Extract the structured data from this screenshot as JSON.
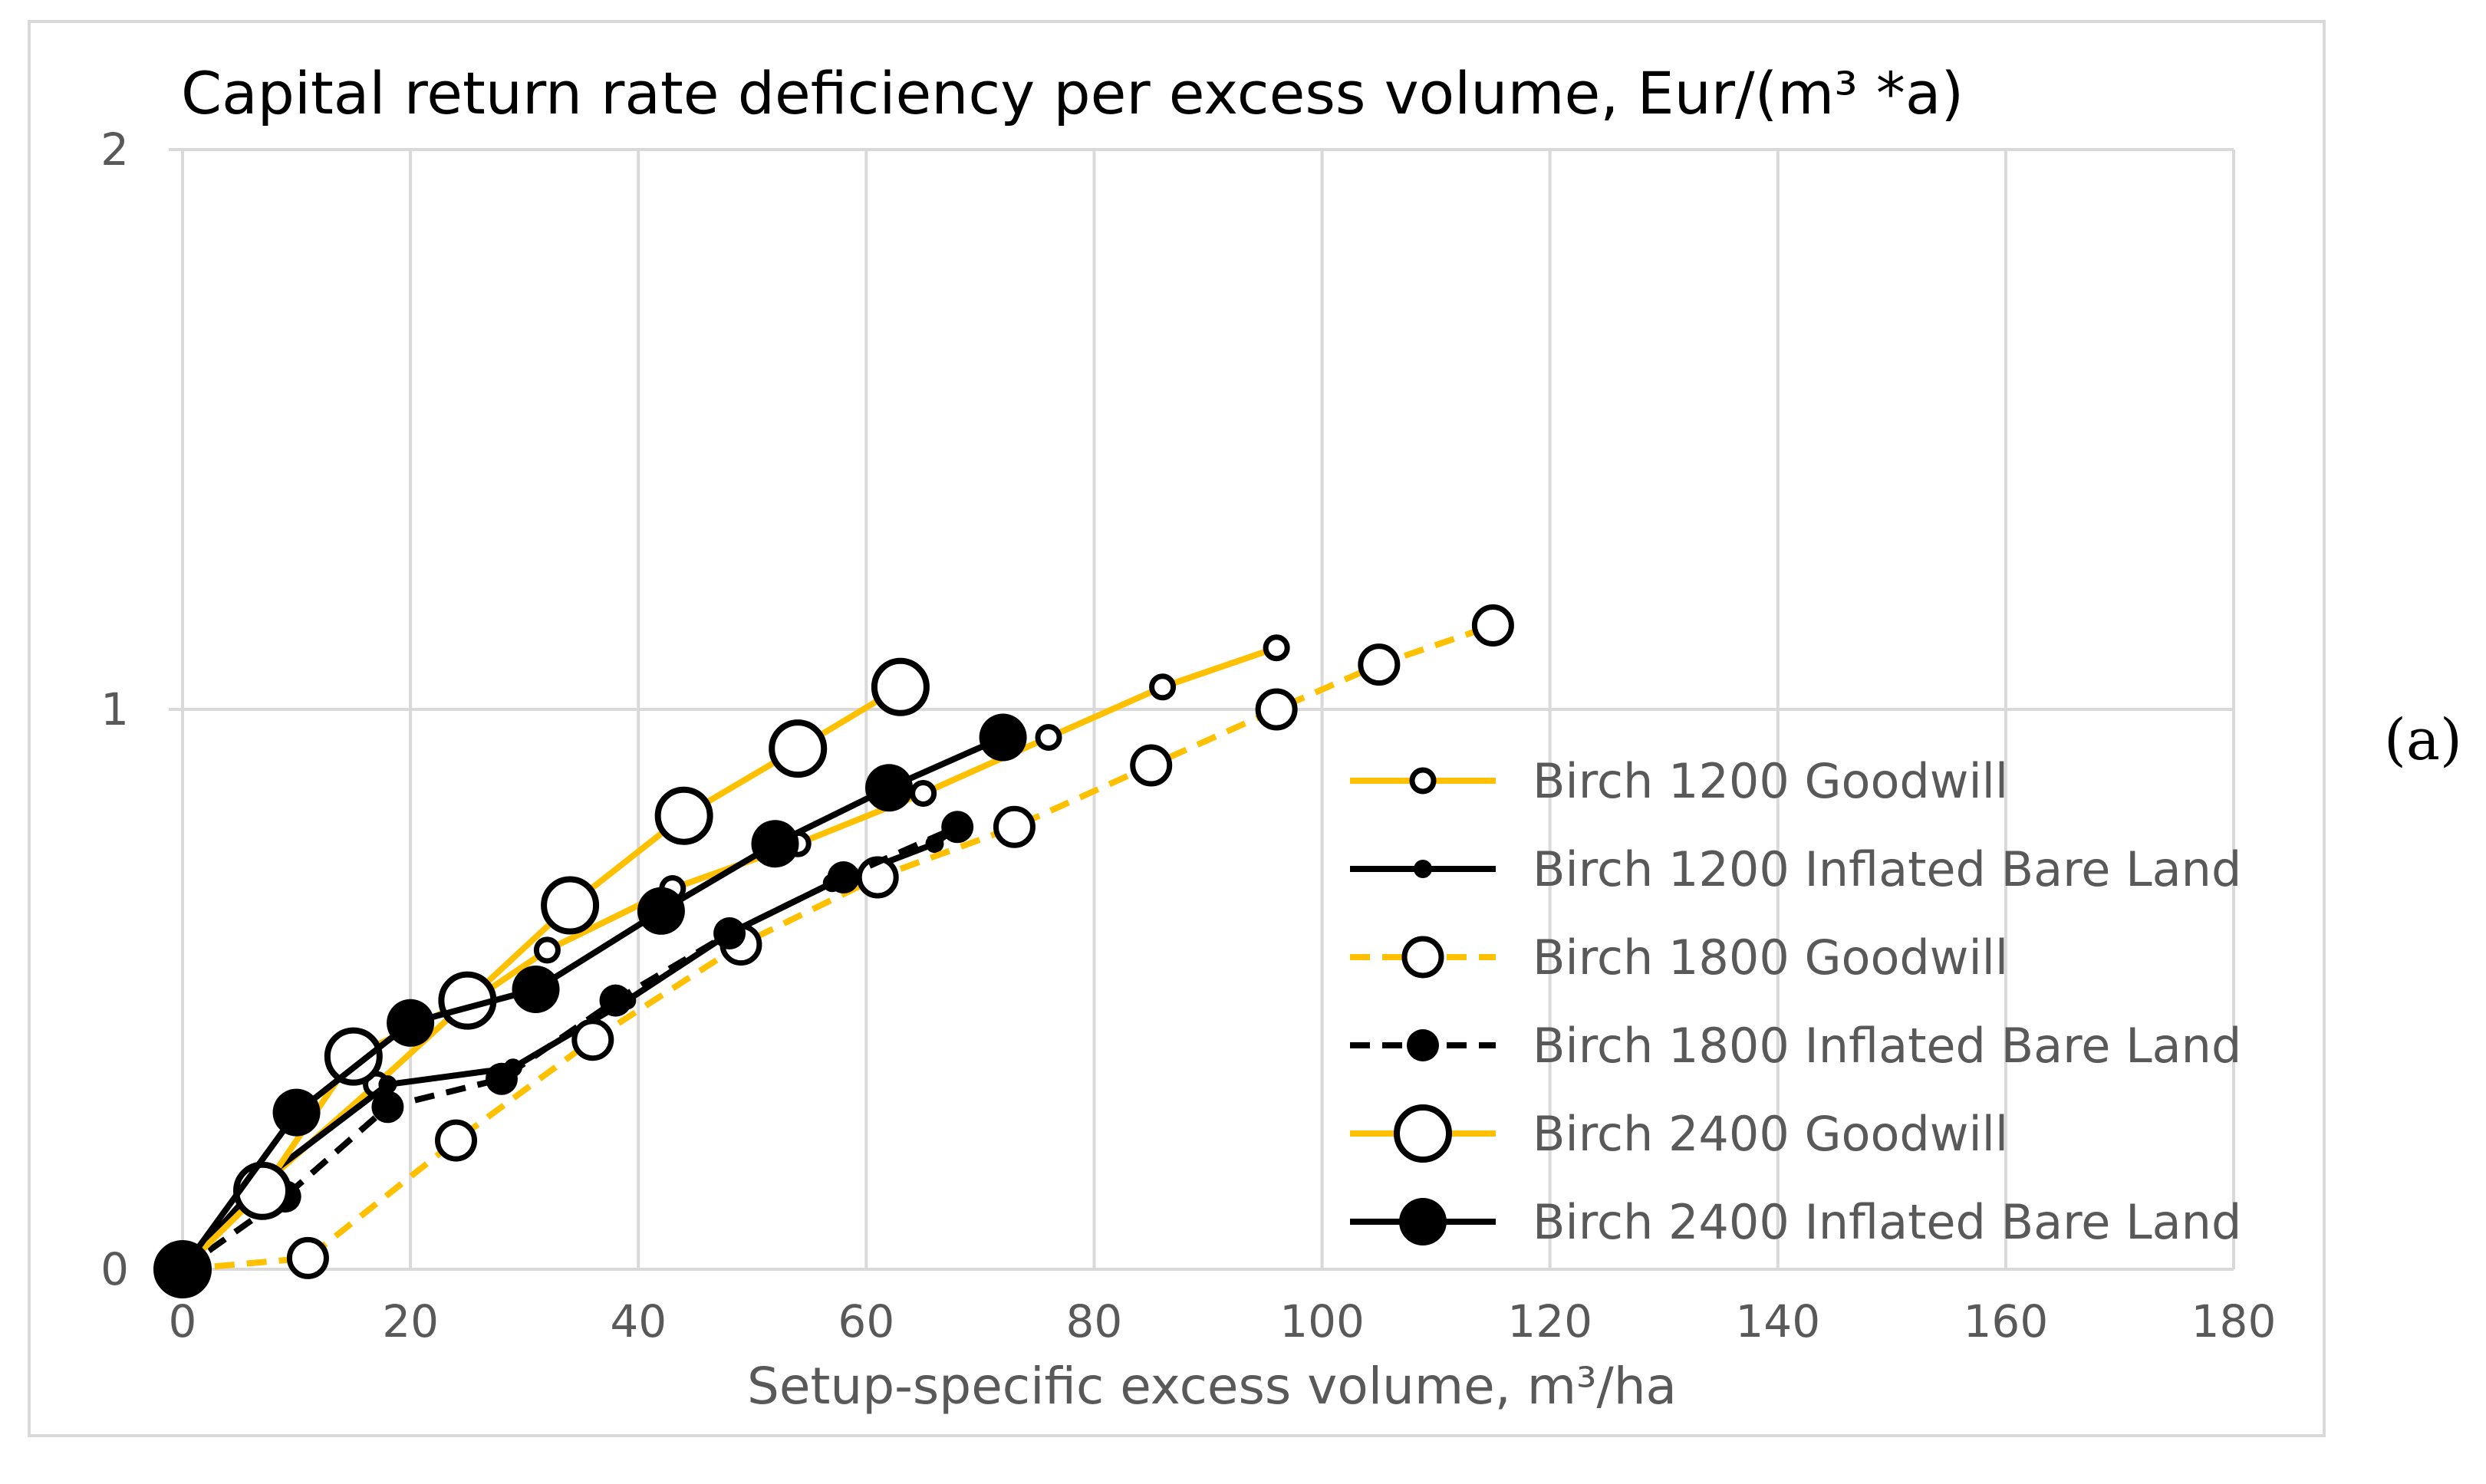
{
  "panel_label": "(a)",
  "chart_data": {
    "type": "line",
    "title": "Capital return rate deficiency per excess volume,  Eur/(m³ *a)",
    "xlabel": "Setup-specific excess volume, m³/ha",
    "ylabel": "",
    "xlim": [
      0,
      180
    ],
    "ylim": [
      0,
      2
    ],
    "x_ticks": [
      0,
      20,
      40,
      60,
      80,
      100,
      120,
      140,
      160,
      180
    ],
    "y_ticks": [
      0,
      1,
      2
    ],
    "grid": true,
    "legend_position": "right",
    "colors": {
      "gold": "#ffc000",
      "black": "#000000",
      "grid": "#d9d9d9"
    },
    "series": [
      {
        "name": "Birch 1200 Goodwill",
        "color": "#ffc000",
        "dash": "solid",
        "marker": "open-small",
        "points": [
          [
            0,
            0
          ],
          [
            7,
            0.15
          ],
          [
            17,
            0.33
          ],
          [
            24,
            0.46
          ],
          [
            32,
            0.57
          ],
          [
            43,
            0.68
          ],
          [
            54,
            0.76
          ],
          [
            65,
            0.85
          ],
          [
            76,
            0.95
          ],
          [
            86,
            1.04
          ],
          [
            96,
            1.11
          ]
        ]
      },
      {
        "name": "Birch 1200 Inflated Bare Land",
        "color": "#000000",
        "dash": "solid",
        "marker": "filled-small",
        "points": [
          [
            0,
            0
          ],
          [
            7,
            0.16
          ],
          [
            18,
            0.33
          ],
          [
            29,
            0.36
          ],
          [
            39,
            0.48
          ],
          [
            48,
            0.6
          ],
          [
            57,
            0.69
          ],
          [
            66,
            0.76
          ],
          [
            68,
            0.79
          ]
        ]
      },
      {
        "name": "Birch 1800 Goodwill",
        "color": "#ffc000",
        "dash": "dashed",
        "marker": "open-medium",
        "points": [
          [
            0,
            0
          ],
          [
            11,
            0.02
          ],
          [
            24,
            0.23
          ],
          [
            36,
            0.41
          ],
          [
            49,
            0.58
          ],
          [
            61,
            0.7
          ],
          [
            73,
            0.79
          ],
          [
            85,
            0.9
          ],
          [
            96,
            1.0
          ],
          [
            105,
            1.08
          ],
          [
            115,
            1.15
          ]
        ]
      },
      {
        "name": "Birch 1800 Inflated Bare Land",
        "color": "#000000",
        "dash": "dashed",
        "marker": "filled-medium",
        "points": [
          [
            0,
            0
          ],
          [
            9,
            0.13
          ],
          [
            18,
            0.29
          ],
          [
            28,
            0.34
          ],
          [
            38,
            0.48
          ],
          [
            48,
            0.6
          ],
          [
            58,
            0.7
          ],
          [
            68,
            0.79
          ]
        ]
      },
      {
        "name": "Birch 2400 Goodwill",
        "color": "#ffc000",
        "dash": "solid",
        "marker": "open-large",
        "points": [
          [
            0,
            0
          ],
          [
            7,
            0.14
          ],
          [
            15,
            0.38
          ],
          [
            25,
            0.48
          ],
          [
            34,
            0.65
          ],
          [
            44,
            0.81
          ],
          [
            54,
            0.93
          ],
          [
            63,
            1.04
          ]
        ]
      },
      {
        "name": "Birch 2400 Inflated Bare Land",
        "color": "#000000",
        "dash": "solid",
        "marker": "filled-large",
        "points": [
          [
            0,
            0
          ],
          [
            10,
            0.28
          ],
          [
            20,
            0.44
          ],
          [
            31,
            0.5
          ],
          [
            42,
            0.64
          ],
          [
            52,
            0.76
          ],
          [
            62,
            0.86
          ],
          [
            72,
            0.95
          ]
        ]
      }
    ]
  }
}
